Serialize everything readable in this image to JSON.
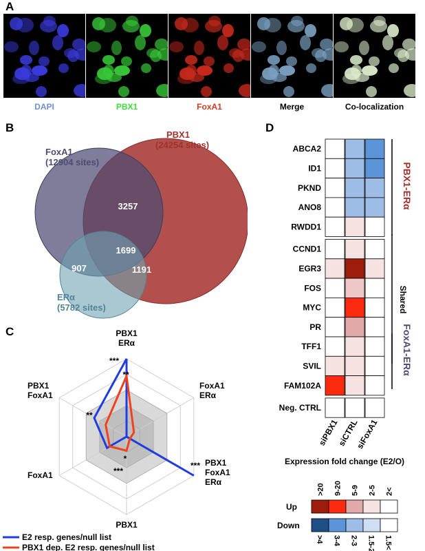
{
  "panels": {
    "a": "A",
    "b": "B",
    "c": "C",
    "d": "D"
  },
  "panel_a": {
    "images": [
      {
        "label": "DAPI",
        "color": "#6f8fd8",
        "cell_color": "#3a3adc"
      },
      {
        "label": "PBX1",
        "color": "#3ddc3d",
        "cell_color": "#38c838"
      },
      {
        "label": "FoxA1",
        "color": "#d03a1e",
        "cell_color": "#c8291c"
      },
      {
        "label": "Merge",
        "color": "#000000",
        "cell_color": "#7aa0c0"
      },
      {
        "label": "Co-localization",
        "color": "#000000",
        "cell_color": "#d8e8c8"
      }
    ]
  },
  "panel_b": {
    "foxa1_name": "FoxA1",
    "foxa1_sites": "(12904 sites)",
    "pbx1_name": "PBX1",
    "pbx1_sites": "(24254 sites)",
    "era_name": "ERα",
    "era_sites": "(5782 sites)",
    "overlap_foxa1_pbx1": "3257",
    "overlap_all": "1699",
    "overlap_foxa1_era": "907",
    "overlap_pbx1_era": "1191",
    "colors": {
      "foxa1": "#4d4b72",
      "pbx1": "#a3312e",
      "era": "#6fa3b3"
    }
  },
  "panel_c": {
    "axes": [
      {
        "line1": "PBX1",
        "line2": "ERα"
      },
      {
        "line1": "FoxA1",
        "line2": "ERα"
      },
      {
        "line1": "PBX1",
        "line2": "FoxA1",
        "line3": "ERα"
      },
      {
        "line1": "PBX1"
      },
      {
        "line1": "FoxA1"
      },
      {
        "line1": "PBX1",
        "line2": "FoxA1"
      }
    ],
    "stars": {
      "blue_top": "***",
      "red_top": "**",
      "blue_left": "**",
      "red_bottom": "*",
      "gray_bottom": "***",
      "blue_right": "***"
    },
    "legend": {
      "blue": "E2 resp. genes/null list",
      "red": "PBX1 dep. E2 resp. genes/null list"
    },
    "colors": {
      "blue": "#1f3de0",
      "red": "#f0421c",
      "shade": "#c8c8c8"
    }
  },
  "chart_data": {
    "type": "radar",
    "axes": [
      "PBX1 ERα",
      "FoxA1 ERα",
      "PBX1 FoxA1 ERα",
      "PBX1",
      "FoxA1",
      "PBX1 FoxA1"
    ],
    "series": [
      {
        "name": "E2 resp. genes/null list",
        "values": [
          5.0,
          0.0,
          5.0,
          0.0,
          1.45,
          2.4
        ]
      },
      {
        "name": "PBX1 dep. E2 resp. genes/null list",
        "values": [
          3.9,
          0.55,
          0.25,
          0.9,
          1.25,
          1.55
        ]
      }
    ],
    "levels": 5,
    "rmax": 5
  },
  "panel_d": {
    "rows": [
      "ABCA2",
      "ID1",
      "PKND",
      "ANO8",
      "RWDD1",
      "CCND1",
      "EGR3",
      "FOS",
      "MYC",
      "PR",
      "TFF1",
      "SVIL",
      "FAM102A",
      "Neg. CTRL"
    ],
    "columns": [
      "siPBX1",
      "siCTRL",
      "siFoxA1"
    ],
    "groups": {
      "pbx1_era": "PBX1-ERα",
      "shared": "Shared",
      "foxa1_era": "FoxA1-ERα"
    },
    "group_colors": {
      "pbx1_era": "#a3312e",
      "foxa1_era": "#4d4b72"
    },
    "cells": [
      [
        "#ffffff",
        "#9dbde6",
        "#5b95d8"
      ],
      [
        "#ffffff",
        "#9dbde6",
        "#5b95d8"
      ],
      [
        "#ffffff",
        "#9dbde6",
        "#9dbde6"
      ],
      [
        "#ffffff",
        "#9dbde6",
        "#9dbde6"
      ],
      [
        "#ffffff",
        "#f7e2e2",
        "#ffffff"
      ],
      [
        "#ffffff",
        "#f7e2e2",
        "#ffffff"
      ],
      [
        "#f7e2e2",
        "#9e1c0c",
        "#f7e2e2"
      ],
      [
        "#ffffff",
        "#eec8c8",
        "#ffffff"
      ],
      [
        "#ffffff",
        "#fc2b10",
        "#ffffff"
      ],
      [
        "#ffffff",
        "#e2a9a9",
        "#ffffff"
      ],
      [
        "#ffffff",
        "#f7e2e2",
        "#ffffff"
      ],
      [
        "#f7e2e2",
        "#f7e2e2",
        "#ffffff"
      ],
      [
        "#fc2b10",
        "#f7e2e2",
        "#ffffff"
      ],
      [
        "#ffffff",
        "#ffffff",
        "#ffffff"
      ]
    ],
    "legend": {
      "title": "Expression fold change (E2/O)",
      "up_label": "Up",
      "down_label": "Down",
      "up_ticks": [
        ">20",
        "9-20",
        "5-9",
        "2-5",
        "2<"
      ],
      "down_ticks": [
        ">4",
        "3-4",
        "2-3",
        "1.5-2",
        "1.5<"
      ],
      "up_colors": [
        "#9e1c0c",
        "#fc2b10",
        "#e2a9a9",
        "#f7e2e2",
        "#ffffff"
      ],
      "down_colors": [
        "#1e4e86",
        "#5b95d8",
        "#9dbde6",
        "#cfdff3",
        "#ffffff"
      ]
    }
  }
}
